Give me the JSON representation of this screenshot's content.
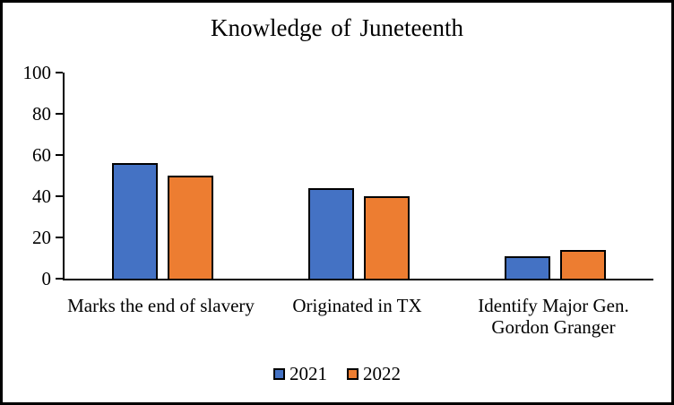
{
  "window": {
    "background_color": "#ffffff",
    "border_color": "#000000"
  },
  "chart_data": {
    "type": "bar",
    "title": "Knowledge of Juneteenth",
    "categories": [
      "Marks the end of slavery",
      "Originated in TX",
      "Identify Major Gen. Gordon Granger"
    ],
    "series": [
      {
        "name": "2021",
        "color": "#4472C4",
        "values": [
          56,
          44,
          11
        ]
      },
      {
        "name": "2022",
        "color": "#ED7D31",
        "values": [
          50,
          40,
          14
        ]
      }
    ],
    "xlabel": "",
    "ylabel": "",
    "ylim": [
      0,
      100
    ],
    "yticks": [
      0,
      20,
      40,
      60,
      80,
      100
    ],
    "grid": false,
    "legend_position": "bottom",
    "bar_border_color": "#000000",
    "axis_color": "#000000"
  }
}
